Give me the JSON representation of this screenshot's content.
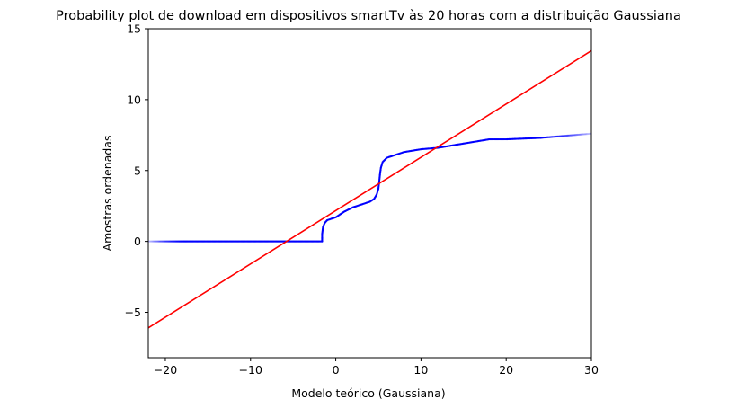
{
  "chart_data": {
    "type": "scatter",
    "title": "Probability plot de download em dispositivos smartTv às 20 horas com a distribuição Gaussiana",
    "xlabel": "Modelo teórico (Gaussiana)",
    "ylabel": "Amostras ordenadas",
    "xlim": [
      -22,
      30
    ],
    "ylim": [
      -8.2,
      15
    ],
    "xticks": [
      -20,
      -10,
      0,
      10,
      20,
      30
    ],
    "xtick_labels": [
      "−20",
      "−10",
      "0",
      "10",
      "20",
      "30"
    ],
    "yticks": [
      -5,
      0,
      5,
      10,
      15
    ],
    "ytick_labels": [
      "−5",
      "0",
      "5",
      "10",
      "15"
    ],
    "grid": false,
    "colors": {
      "points": "#0000ff",
      "fit_line": "#ff0000"
    },
    "series": [
      {
        "kind": "ordered_samples_points",
        "x": [
          -22,
          -20,
          -18,
          -16,
          -14,
          -12,
          -10,
          -8,
          -6,
          -4,
          -2,
          -1.6,
          -1.6,
          -1.5,
          -1.3,
          -1.0,
          -0.5,
          0,
          0.5,
          1,
          2,
          3,
          4,
          4.5,
          4.8,
          5.0,
          5.1,
          5.2,
          5.3,
          5.5,
          6,
          7,
          8,
          10,
          12,
          14,
          16,
          17,
          18,
          20,
          22,
          24,
          26,
          28,
          30
        ],
        "y": [
          0,
          0,
          0,
          0,
          0,
          0,
          0,
          0,
          0,
          0,
          0,
          0,
          0.5,
          1.0,
          1.3,
          1.5,
          1.6,
          1.7,
          1.9,
          2.1,
          2.4,
          2.6,
          2.8,
          3.0,
          3.3,
          3.7,
          4.2,
          4.8,
          5.2,
          5.6,
          5.9,
          6.1,
          6.3,
          6.5,
          6.6,
          6.8,
          7.0,
          7.1,
          7.2,
          7.2,
          7.25,
          7.3,
          7.4,
          7.5,
          7.6
        ]
      },
      {
        "kind": "fit_line",
        "x": [
          -22,
          30
        ],
        "y": [
          -6.1,
          13.45
        ]
      }
    ]
  }
}
